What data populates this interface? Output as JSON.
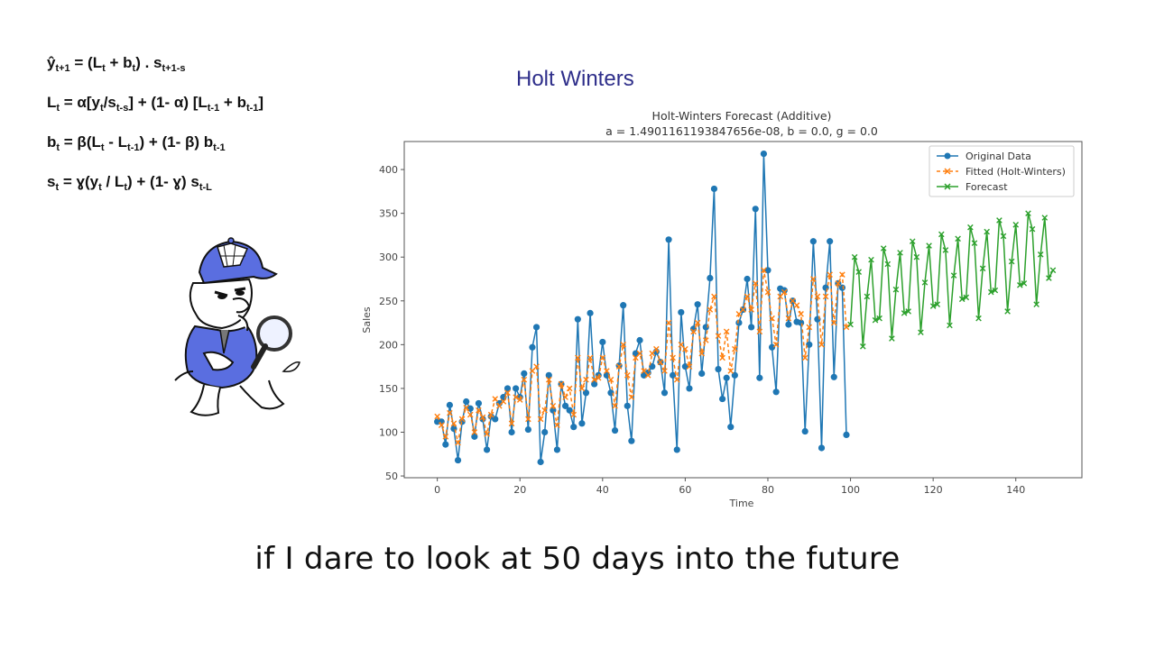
{
  "slide": {
    "title": "Holt Winters",
    "caption": "if I dare to look at 50 days into the future"
  },
  "formulas": [
    {
      "lhs": "ŷ",
      "lhs_sub": "t+1",
      "parts": [
        " = (L",
        "t",
        " + b",
        "t",
        ") . s",
        "t+1-s"
      ]
    },
    {
      "lhs": "L",
      "lhs_sub": "t",
      "parts": [
        " = α[y",
        "t",
        "/s",
        "t-s",
        "] + (1- α) [L",
        "t-1",
        " + b",
        "t-1",
        "]"
      ]
    },
    {
      "lhs": "b",
      "lhs_sub": "t",
      "parts": [
        " = β(L",
        "t",
        " - L",
        "t-1",
        ") + (1- β) b",
        "t-1",
        ""
      ]
    },
    {
      "lhs": "s",
      "lhs_sub": "t",
      "parts": [
        " = ɣ(y",
        "t",
        " / L",
        "t",
        ") + (1- ɣ) s",
        "t-L",
        ""
      ]
    }
  ],
  "mascot": {
    "description": "detective eagle with deerstalker hat and magnifying glass",
    "icon": "detective-mascot-icon",
    "color": "#5a6ee0"
  },
  "chart_data": {
    "type": "line",
    "title": "Holt-Winters Forecast (Additive)",
    "subtitle": "a = 1.4901161193847656e-08, b = 0.0, g = 0.0",
    "xlabel": "Time",
    "ylabel": "Sales",
    "xlim": [
      -8,
      156
    ],
    "ylim": [
      48,
      432
    ],
    "xticks": [
      0,
      20,
      40,
      60,
      80,
      100,
      120,
      140
    ],
    "yticks": [
      50,
      100,
      150,
      200,
      250,
      300,
      350,
      400
    ],
    "grid": false,
    "legend_position": "upper right",
    "series": [
      {
        "name": "Original Data",
        "color": "#1f77b4",
        "marker": "o",
        "linestyle": "solid",
        "x_start": 0,
        "values": [
          112,
          112,
          86,
          131,
          104,
          68,
          112,
          135,
          127,
          95,
          133,
          115,
          80,
          118,
          115,
          133,
          140,
          150,
          100,
          150,
          140,
          167,
          103,
          197,
          220,
          66,
          100,
          165,
          125,
          80,
          155,
          130,
          125,
          106,
          229,
          110,
          145,
          236,
          155,
          165,
          203,
          165,
          145,
          102,
          176,
          245,
          130,
          90,
          190,
          205,
          165,
          168,
          175,
          192,
          180,
          145,
          320,
          165,
          80,
          237,
          175,
          150,
          218,
          246,
          167,
          220,
          276,
          378,
          172,
          138,
          162,
          106,
          165,
          225,
          240,
          275,
          220,
          355,
          162,
          418,
          285,
          197,
          146,
          264,
          262,
          223,
          250,
          226,
          225,
          101,
          200,
          318,
          229,
          82,
          265,
          318,
          163,
          270,
          265,
          97
        ]
      },
      {
        "name": "Fitted (Holt-Winters)",
        "color": "#ff7f0e",
        "marker": "x",
        "linestyle": "dashed",
        "x_start": 0,
        "values": [
          118,
          108,
          95,
          122,
          110,
          88,
          115,
          128,
          120,
          100,
          125,
          117,
          98,
          120,
          138,
          130,
          135,
          145,
          110,
          140,
          137,
          160,
          115,
          170,
          175,
          115,
          125,
          160,
          130,
          108,
          155,
          140,
          150,
          120,
          185,
          150,
          160,
          185,
          160,
          162,
          185,
          170,
          160,
          130,
          175,
          200,
          165,
          140,
          185,
          190,
          170,
          165,
          190,
          195,
          180,
          170,
          225,
          185,
          160,
          200,
          195,
          175,
          215,
          225,
          190,
          205,
          240,
          255,
          210,
          185,
          215,
          170,
          195,
          235,
          240,
          255,
          240,
          270,
          215,
          285,
          260,
          230,
          200,
          255,
          260,
          230,
          250,
          245,
          235,
          185,
          220,
          275,
          255,
          200,
          255,
          280,
          225,
          270,
          280,
          220
        ]
      },
      {
        "name": "Forecast",
        "color": "#2ca02c",
        "marker": "x",
        "linestyle": "solid",
        "x_start": 100,
        "values": [
          223,
          300,
          283,
          198,
          255,
          297,
          228,
          230,
          310,
          292,
          207,
          263,
          305,
          236,
          238,
          318,
          300,
          214,
          271,
          313,
          244,
          246,
          326,
          308,
          222,
          279,
          321,
          252,
          254,
          334,
          316,
          230,
          287,
          329,
          260,
          262,
          342,
          324,
          238,
          295,
          337,
          268,
          270,
          350,
          332,
          246,
          303,
          345,
          276,
          285
        ]
      }
    ]
  }
}
